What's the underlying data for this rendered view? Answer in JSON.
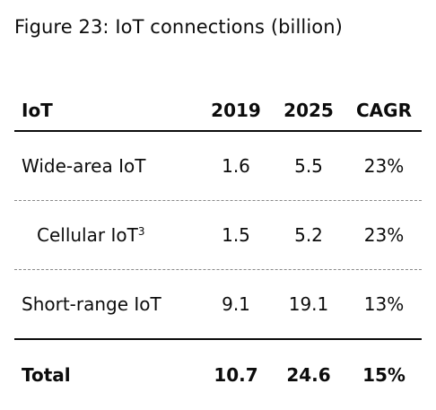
{
  "chart_data": {
    "type": "table",
    "title": "Figure 23: IoT connections (billion)",
    "columns": [
      "IoT",
      "2019",
      "2025",
      "CAGR"
    ],
    "rows": [
      {
        "label": "Wide-area IoT",
        "v2019": "1.6",
        "v2025": "5.5",
        "cagr": "23%",
        "indent": false
      },
      {
        "label": "Cellular IoT",
        "superscript": "3",
        "v2019": "1.5",
        "v2025": "5.2",
        "cagr": "23%",
        "indent": true
      },
      {
        "label": "Short-range IoT",
        "v2019": "9.1",
        "v2025": "19.1",
        "cagr": "13%",
        "indent": false
      }
    ],
    "total": {
      "label": "Total",
      "v2019": "10.7",
      "v2025": "24.6",
      "cagr": "15%"
    }
  }
}
